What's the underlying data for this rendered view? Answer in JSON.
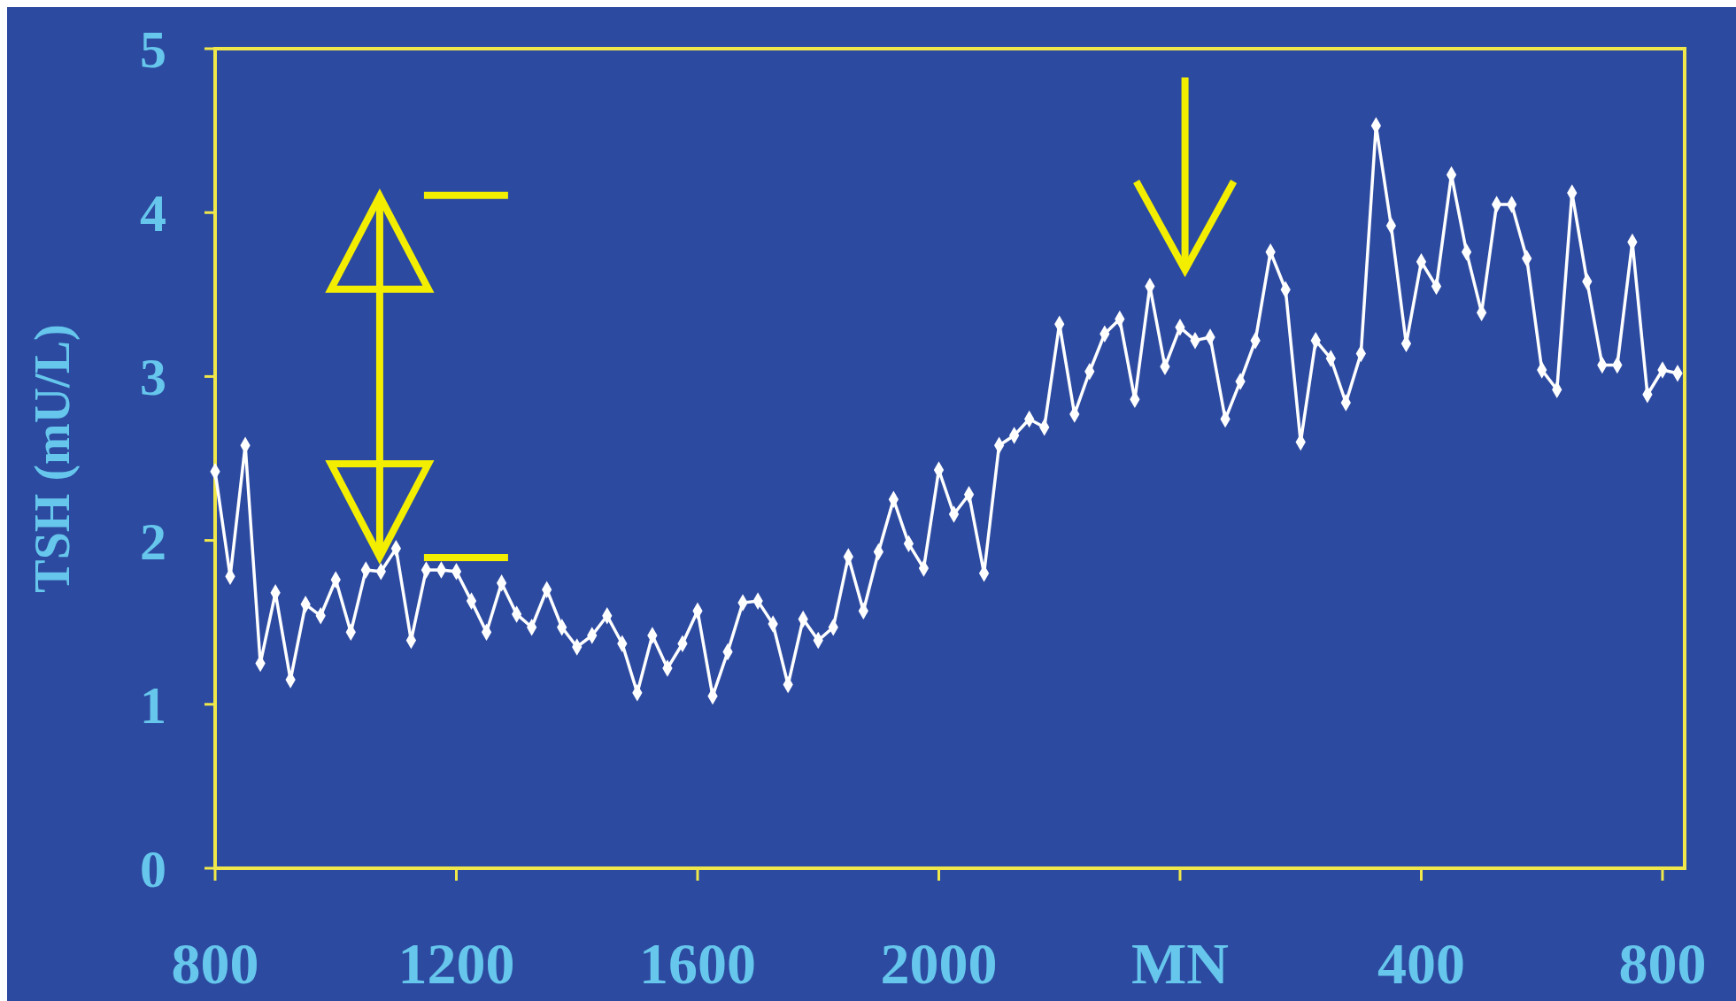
{
  "chart_data": {
    "type": "line",
    "ylabel": "TSH (mU/L)",
    "ylim": [
      0,
      5
    ],
    "yticks": [
      0,
      1,
      2,
      3,
      4,
      5
    ],
    "grid": false,
    "marker": "diamond",
    "line_style": "solid",
    "categories": [
      "800",
      null,
      null,
      null,
      null,
      null,
      null,
      null,
      null,
      null,
      null,
      null,
      null,
      null,
      null,
      null,
      "1200",
      null,
      null,
      null,
      null,
      null,
      null,
      null,
      null,
      null,
      null,
      null,
      null,
      null,
      null,
      null,
      "1600",
      null,
      null,
      null,
      null,
      null,
      null,
      null,
      null,
      null,
      null,
      null,
      null,
      null,
      null,
      null,
      "2000",
      null,
      null,
      null,
      null,
      null,
      null,
      null,
      null,
      null,
      null,
      null,
      null,
      null,
      null,
      null,
      "MN",
      null,
      null,
      null,
      null,
      null,
      null,
      null,
      null,
      null,
      null,
      null,
      null,
      null,
      null,
      null,
      "400",
      null,
      null,
      null,
      null,
      null,
      null,
      null,
      null,
      null,
      null,
      null,
      null,
      null,
      null,
      null,
      "800",
      null
    ],
    "series": [
      {
        "color": "#ffffff",
        "values": [
          2.42,
          1.78,
          2.58,
          1.25,
          1.68,
          1.15,
          1.61,
          1.54,
          1.76,
          1.44,
          1.82,
          1.81,
          1.95,
          1.39,
          1.82,
          1.82,
          1.81,
          1.63,
          1.44,
          1.74,
          1.55,
          1.47,
          1.7,
          1.47,
          1.35,
          1.42,
          1.54,
          1.37,
          1.07,
          1.42,
          1.22,
          1.37,
          1.57,
          1.05,
          1.32,
          1.62,
          1.63,
          1.49,
          1.12,
          1.52,
          1.39,
          1.47,
          1.9,
          1.57,
          1.93,
          2.25,
          1.98,
          1.83,
          2.43,
          2.16,
          2.28,
          1.8,
          2.58,
          2.64,
          2.74,
          2.69,
          3.32,
          2.77,
          3.03,
          3.26,
          3.35,
          2.86,
          3.55,
          3.06,
          3.3,
          3.22,
          3.24,
          2.74,
          2.97,
          3.22,
          3.76,
          3.53,
          2.6,
          3.22,
          3.11,
          2.84,
          3.14,
          4.53,
          3.92,
          3.2,
          3.7,
          3.55,
          4.23,
          3.76,
          3.39,
          4.05,
          4.05,
          3.72,
          3.04,
          2.92,
          4.12,
          3.58,
          3.07,
          3.07,
          3.82,
          2.89,
          3.04,
          3.02
        ]
      }
    ]
  }
}
